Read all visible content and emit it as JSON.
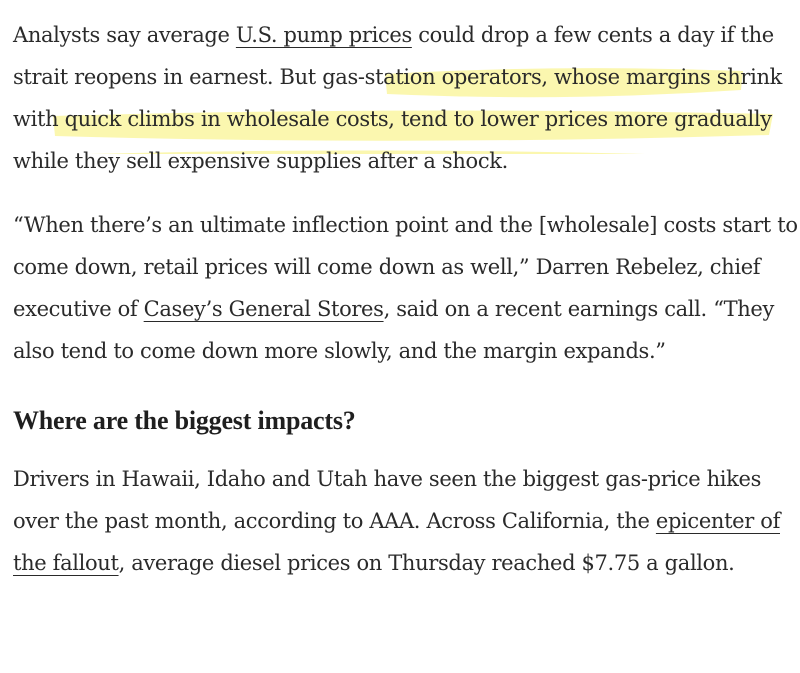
{
  "highlight_color": "#fbf6a6",
  "paragraph_1": {
    "text_before_link": "Analysts say average ",
    "link_1": "U.S. pump prices",
    "text_after_link_1": " could drop a few cents a day if the strait reopens in earnest. But ",
    "highlighted_text": "gas-station operators, whose margins shrink with quick climbs in wholesale costs, tend to lower prices more gradually while they sell expensive supplies after a shock",
    "text_end": "."
  },
  "paragraph_2": {
    "quote_1": "“When there’s an ultimate inflection point and the [wholesale] costs start to come down, retail prices will come down as well,” Darren Rebelez, chief executive of ",
    "link_2": "Casey’s General Stores",
    "quote_2": ", said on a recent earnings call. “They also tend to come down more slowly, and the margin expands.”"
  },
  "heading": "Where are the biggest impacts?",
  "paragraph_3": {
    "text_before_link": "Drivers in Hawaii, Idaho and Utah have seen the biggest gas-price hikes over the past month, according to AAA. Across California, the ",
    "link_3": "epicenter of the fallout",
    "text_after_link": ", average diesel prices on Thursday reached $7.75 a gallon."
  }
}
